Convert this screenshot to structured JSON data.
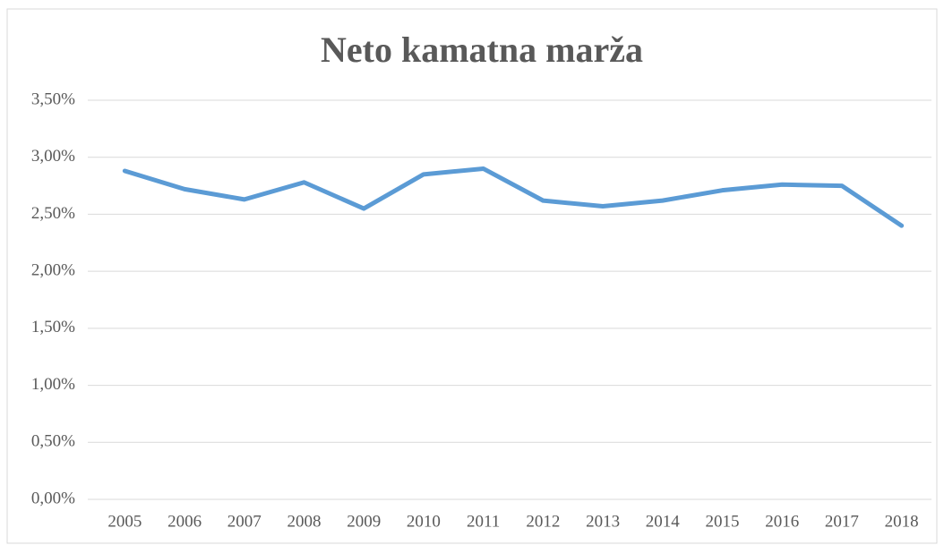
{
  "chart_data": {
    "type": "line",
    "title": "Neto kamatna marža",
    "categories": [
      "2005",
      "2006",
      "2007",
      "2008",
      "2009",
      "2010",
      "2011",
      "2012",
      "2013",
      "2014",
      "2015",
      "2016",
      "2017",
      "2018"
    ],
    "series": [
      {
        "name": "Neto kamatna marža",
        "color": "#5b9bd5",
        "values": [
          2.88,
          2.72,
          2.63,
          2.78,
          2.55,
          2.85,
          2.9,
          2.62,
          2.57,
          2.62,
          2.71,
          2.76,
          2.75,
          2.4
        ]
      }
    ],
    "ylim": [
      0,
      3.5
    ],
    "yticks": [
      {
        "value": 0,
        "label": "0,00%"
      },
      {
        "value": 0.5,
        "label": "0,50%"
      },
      {
        "value": 1,
        "label": "1,00%"
      },
      {
        "value": 1.5,
        "label": "1,50%"
      },
      {
        "value": 2,
        "label": "2,00%"
      },
      {
        "value": 2.5,
        "label": "2,50%"
      },
      {
        "value": 3,
        "label": "3,00%"
      },
      {
        "value": 3.5,
        "label": "3,50%"
      }
    ],
    "grid": true
  }
}
